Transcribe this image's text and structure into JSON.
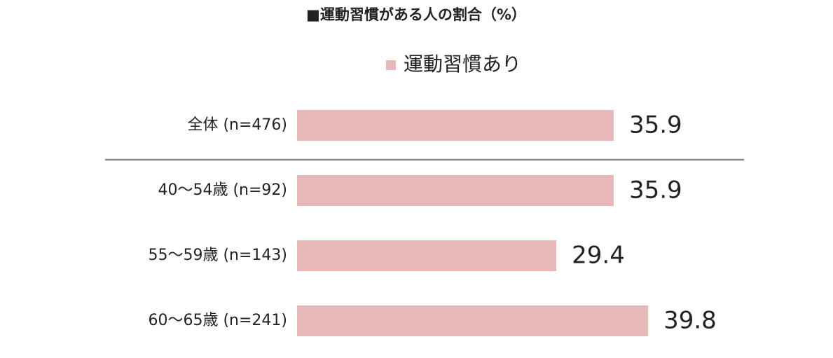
{
  "chart_data": {
    "type": "bar",
    "orientation": "horizontal",
    "title": "■運動習慣がある人の割合（%）",
    "categories": [
      "全体 (n=476)",
      "40〜54歳 (n=92)",
      "55〜59歳 (n=143)",
      "60〜65歳 (n=241)"
    ],
    "series": [
      {
        "name": "運動習慣あり",
        "color": "#e6b8b7",
        "values": [
          35.9,
          35.9,
          29.4,
          39.8
        ]
      }
    ]
  }
}
